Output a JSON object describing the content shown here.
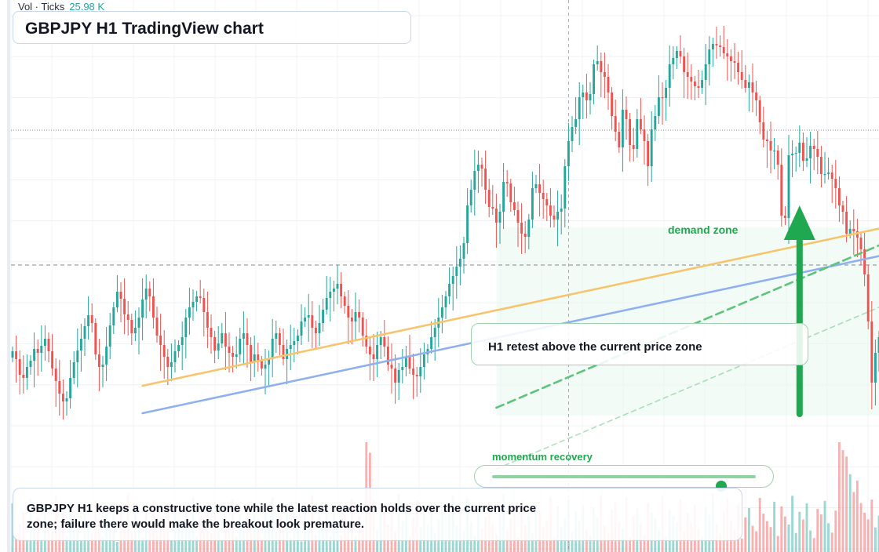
{
  "title": "GBPJPY H1 TradingView chart",
  "volume_legend": {
    "label": "Vol · Ticks",
    "value": "25.98 K"
  },
  "annotations": {
    "callout": "H1 retest above the current price zone",
    "demand_zone_label": "demand zone",
    "slider_label": "momentum recovery",
    "slider_value": 0.87,
    "note": "GBPJPY H1 keeps a constructive tone while the latest reaction holds over the current price zone; failure there would make the breakout look premature."
  },
  "colors": {
    "up": "#26a69a",
    "down": "#ef5350",
    "trendline_orange": "#f7c46c",
    "trendline_blue": "#8fb0f0",
    "demand": "#1fa84f"
  },
  "chart_data": {
    "type": "candlestick",
    "symbol": "GBPJPY",
    "timeframe": "H1",
    "grid": true,
    "close": [
      448,
      458,
      478,
      482,
      468,
      460,
      445,
      450,
      441,
      432,
      448,
      470,
      486,
      502,
      512,
      508,
      482,
      462,
      447,
      432,
      416,
      402,
      412,
      452,
      468,
      465,
      442,
      415,
      392,
      372,
      381,
      401,
      408,
      425,
      418,
      405,
      382,
      368,
      378,
      405,
      428,
      440,
      455,
      468,
      462,
      448,
      440,
      430,
      405,
      392,
      385,
      378,
      380,
      398,
      418,
      430,
      447,
      438,
      425,
      442,
      450,
      455,
      452,
      432,
      425,
      440,
      462,
      452,
      460,
      470,
      465,
      458,
      432,
      425,
      440,
      458,
      445,
      440,
      435,
      428,
      410,
      405,
      402,
      418,
      425,
      412,
      395,
      380,
      372,
      368,
      362,
      378,
      390,
      405,
      410,
      398,
      405,
      428,
      442,
      452,
      458,
      440,
      430,
      442,
      465,
      470,
      488,
      472,
      468,
      455,
      470,
      478,
      480,
      468,
      452,
      445,
      430,
      418,
      405,
      392,
      378,
      362,
      352,
      340,
      330,
      310,
      262,
      242,
      218,
      210,
      215,
      242,
      264,
      266,
      284,
      270,
      232,
      234,
      258,
      268,
      284,
      298,
      302,
      280,
      240,
      235,
      246,
      254,
      262,
      275,
      280,
      270,
      266,
      212,
      180,
      162,
      152,
      124,
      118,
      128,
      120,
      82,
      78,
      92,
      98,
      118,
      148,
      168,
      188,
      140,
      152,
      185,
      190,
      152,
      165,
      180,
      212,
      165,
      148,
      124,
      125,
      112,
      82,
      74,
      65,
      72,
      92,
      98,
      104,
      110,
      112,
      102,
      82,
      63,
      56,
      58,
      60,
      68,
      72,
      78,
      80,
      92,
      102,
      112,
      105,
      118,
      128,
      156,
      178,
      180,
      192,
      192,
      210,
      275,
      278,
      198,
      196,
      195,
      182,
      205,
      202,
      186,
      190,
      200,
      222,
      222,
      220,
      228,
      240,
      262,
      270,
      298,
      292,
      295,
      303,
      318,
      350,
      410,
      488,
      450,
      430,
      412,
      345,
      290,
      255,
      234,
      210,
      192,
      182,
      168,
      185,
      210,
      230,
      240
    ],
    "volume_ticks": [
      11.5,
      4.2,
      6.8,
      9.4,
      3.1,
      12.7,
      5.5,
      8.2,
      2.6,
      10.9,
      7.3,
      4.8,
      13.2,
      6.1,
      9.7,
      3.9,
      11.8,
      5.2,
      8.6,
      2.9,
      10.1,
      6.9,
      4.4,
      12.3,
      7.8,
      3.5,
      9.1,
      5.9,
      11.2,
      2.4,
      8.9,
      6.3,
      13.7,
      4.6,
      10.4,
      7.1,
      3.3,
      9.8,
      5.7,
      12.1,
      4.1,
      8.1,
      6.6,
      11.6,
      2.8,
      9.3,
      7.6,
      4.9,
      10.8,
      5.1,
      13.1,
      3.7,
      8.4,
      6.2,
      11.9,
      4.3,
      9.6,
      7.4,
      2.7,
      10.6,
      5.4,
      12.5,
      3.6,
      8.8,
      6.7,
      11.3,
      4.5,
      9.9,
      7.9,
      3.2,
      10.2,
      5.8,
      12.9,
      4.7,
      8.3,
      6.4,
      11.1,
      3.4,
      9.2,
      7.2,
      2.5,
      10.7,
      5.6,
      13.4,
      4.2,
      8.7,
      6.8,
      11.7,
      3.8,
      9.4,
      7.5,
      4.1,
      10.3,
      5.3,
      12.6,
      3.9,
      8.5,
      6.1,
      25.98,
      23.5,
      12.4,
      5.2,
      8.8,
      11.4,
      6.5,
      9.6,
      4.8,
      13.8,
      7.3,
      10.1,
      3.6,
      8.2,
      12.2,
      5.9,
      9.1,
      6.6,
      11.5,
      4.4,
      7.7,
      10.8,
      3.1,
      8.9,
      13.3,
      6.2,
      9.5,
      4.9,
      12.7,
      7.1,
      3.8,
      10.5,
      5.5,
      8.4,
      11.9,
      6.8,
      4.2,
      9.8,
      13.6,
      5.1,
      7.9,
      10.2,
      3.3,
      12.1,
      6.4,
      8.6,
      4.6,
      11.3,
      9.3,
      5.8,
      7.4,
      13.1,
      3.5,
      10.9,
      6.1,
      8.1,
      12.4,
      4.7,
      9.7,
      7.6,
      11.1,
      5.3,
      3.9,
      10.6,
      8.3,
      13.5,
      6.3,
      4.4,
      9.9,
      11.8,
      7.2,
      5.6,
      12.9,
      3.4,
      8.7,
      10.3,
      6.7,
      4.1,
      11.6,
      9.4,
      7.8,
      5.2,
      13.2,
      3.7,
      10.1,
      8.5,
      6.9,
      12.3,
      4.8,
      9.2,
      7.1,
      11.2,
      5.7,
      3.6,
      10.7,
      8.8,
      13.9,
      6.6,
      4.3,
      9.6,
      12.6,
      7.5,
      5.4,
      11.4,
      3.2,
      8.2,
      10.4,
      6.2,
      4.9,
      12.8,
      9.1,
      7.3,
      5.9,
      11.9,
      3.8,
      10.8,
      8.4,
      6.5,
      13.3,
      4.5,
      9.5,
      7.7,
      11.5,
      5.1,
      3.3,
      10.2,
      8.9,
      12.1,
      6.8,
      4.6,
      9.8,
      25.98,
      24.1,
      22.6,
      18.4,
      14.2,
      16.9,
      11.6,
      9.3,
      7.7,
      12.4,
      5.8,
      8.6,
      13.7,
      10.1,
      6.4,
      9.2
    ],
    "horizontal_levels": [
      {
        "price": 166,
        "style": "dotted"
      },
      {
        "price": 338,
        "style": "dashed"
      }
    ],
    "trendlines": [
      {
        "color": "orange",
        "from": {
          "index": 36,
          "price": 492
        },
        "to": {
          "index": 264,
          "price": 268
        }
      },
      {
        "color": "blue",
        "from": {
          "index": 36,
          "price": 527
        },
        "to": {
          "index": 264,
          "price": 303
        }
      },
      {
        "color": "green",
        "style": "dashed",
        "from": {
          "index": 134,
          "price": 520
        },
        "to": {
          "index": 240,
          "price": 313
        }
      },
      {
        "color": "green",
        "style": "dashed-faint",
        "from": {
          "index": 134,
          "price": 598
        },
        "to": {
          "index": 241,
          "price": 390
        }
      }
    ],
    "demand_zone": {
      "from_index": 134,
      "to_index": 241,
      "price_top": 290,
      "price_bottom": 530
    },
    "arrow": {
      "index": 218,
      "from_price": 528,
      "to_price": 262,
      "direction": "up"
    },
    "crosshair_index": 154
  }
}
